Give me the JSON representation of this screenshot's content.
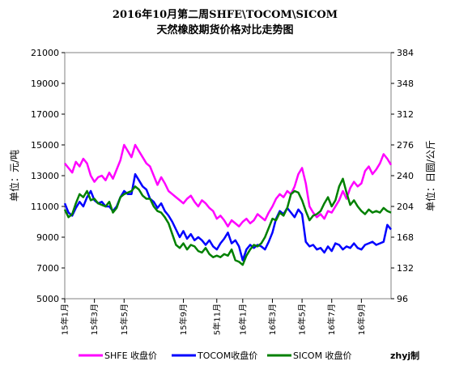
{
  "chart_data": {
    "type": "line",
    "title": "2016年10月第二周SHFE\\TOCOM\\SICOM",
    "subtitle": "天然橡胶期货价格对比走势图",
    "ylabel_left": "单位：元/吨",
    "ylabel_right": "单位：日圆/公斤",
    "credit": "zhyj制",
    "y_left": {
      "min": 5000,
      "max": 21000,
      "ticks": [
        "21000",
        "19000",
        "17000",
        "15000",
        "13000",
        "11000",
        "9000",
        "7000",
        "5000"
      ]
    },
    "y_right": {
      "min": 96,
      "max": 384,
      "ticks": [
        "384",
        "348",
        "312",
        "276",
        "240",
        "204",
        "168",
        "132",
        "96"
      ]
    },
    "x_ticks": [
      "15年1月",
      "15年3月",
      "15年5月",
      "15年9月",
      "5年11月",
      "16年1月",
      "16年3月",
      "16年5月",
      "16年7月",
      "16年9月"
    ],
    "x_tick_positions": [
      0,
      8,
      16,
      32,
      41,
      48,
      56,
      64,
      72,
      80
    ],
    "x_range": [
      0,
      88
    ],
    "legend_position": "bottom",
    "grid": false,
    "series": [
      {
        "name": "SHFE 收盘价",
        "color": "#ff00ff",
        "axis": "left",
        "values": [
          13800,
          13500,
          13200,
          13900,
          13600,
          14100,
          13800,
          13000,
          12600,
          12900,
          13000,
          12700,
          13200,
          12800,
          13400,
          14000,
          15000,
          14600,
          14200,
          15000,
          14600,
          14200,
          13800,
          13600,
          13000,
          12400,
          12900,
          12500,
          12000,
          11800,
          11600,
          11400,
          11200,
          11500,
          11700,
          11300,
          11000,
          11400,
          11200,
          10900,
          10700,
          10200,
          10400,
          10100,
          9700,
          10100,
          9900,
          9700,
          10000,
          10200,
          9900,
          10100,
          10500,
          10300,
          10100,
          10600,
          11000,
          11500,
          11800,
          11600,
          12000,
          11800,
          12300,
          13100,
          13500,
          12500,
          11000,
          10600,
          10300,
          10500,
          10200,
          10700,
          10600,
          11000,
          11400,
          12000,
          11500,
          12200,
          12600,
          12300,
          12500,
          13300,
          13600,
          13100,
          13400,
          13800,
          14400,
          14100,
          13700
        ]
      },
      {
        "name": "TOCOM收盘价",
        "color": "#0000ff",
        "axis": "left",
        "values": [
          11200,
          10600,
          10400,
          10900,
          11300,
          11000,
          11600,
          12000,
          11400,
          11200,
          11300,
          11000,
          11000,
          10700,
          11000,
          11600,
          12000,
          11800,
          11800,
          13100,
          12700,
          12300,
          12100,
          11500,
          11300,
          10900,
          11200,
          10700,
          10400,
          10000,
          9500,
          9000,
          9400,
          8900,
          9200,
          8800,
          9000,
          8800,
          8500,
          8800,
          8400,
          8200,
          8600,
          8900,
          9300,
          8600,
          8800,
          8400,
          7500,
          8200,
          8500,
          8300,
          8500,
          8400,
          8200,
          8700,
          9300,
          10200,
          10700,
          10500,
          10900,
          10600,
          10300,
          10800,
          10500,
          8700,
          8400,
          8500,
          8200,
          8300,
          8000,
          8400,
          8100,
          8600,
          8500,
          8200,
          8400,
          8300,
          8600,
          8300,
          8200,
          8500,
          8600,
          8700,
          8500,
          8600,
          8700,
          9800,
          9500
        ]
      },
      {
        "name": "SICOM 收盘价",
        "color": "#008000",
        "axis": "left",
        "values": [
          10800,
          10300,
          10500,
          11200,
          11800,
          11600,
          12000,
          11400,
          11500,
          11200,
          11100,
          11000,
          11300,
          10600,
          10900,
          11600,
          11800,
          11900,
          12000,
          12300,
          12100,
          11700,
          11500,
          11500,
          11000,
          10700,
          10600,
          10300,
          9900,
          9200,
          8500,
          8300,
          8600,
          8200,
          8500,
          8400,
          8100,
          8000,
          8300,
          7900,
          7700,
          7800,
          7700,
          7900,
          7800,
          8200,
          7500,
          7400,
          7200,
          7800,
          8200,
          8500,
          8400,
          8600,
          9000,
          9600,
          10200,
          10100,
          10600,
          10400,
          10900,
          11800,
          12000,
          11900,
          11400,
          10700,
          10100,
          10400,
          10500,
          10700,
          11200,
          11600,
          11000,
          11400,
          12300,
          12800,
          11900,
          11100,
          11400,
          11000,
          10700,
          10500,
          10800,
          10600,
          10700,
          10600,
          10900,
          10700,
          10600
        ]
      }
    ]
  }
}
